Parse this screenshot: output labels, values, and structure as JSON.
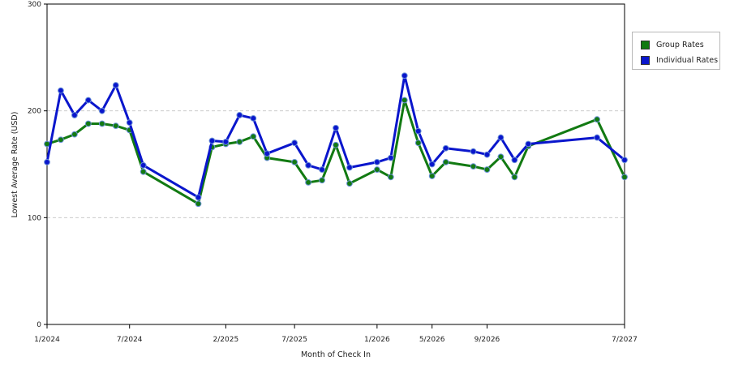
{
  "chart_data": {
    "type": "line",
    "xlabel": "Month of Check In",
    "ylabel": "Lowest Average Rate (USD)",
    "ylim": [
      0,
      300
    ],
    "yticks": [
      0,
      100,
      200,
      300
    ],
    "grid": "horizontal dashed",
    "legend_position": "right",
    "x_tick_labels": [
      "1/2024",
      "7/2024",
      "2/2025",
      "7/2025",
      "1/2026",
      "5/2026",
      "9/2026",
      "7/2027"
    ],
    "x_tick_months": [
      "2024-01",
      "2024-07",
      "2025-02",
      "2025-07",
      "2026-01",
      "2026-05",
      "2026-09",
      "2027-07"
    ],
    "months": [
      "2024-01",
      "2024-02",
      "2024-03",
      "2024-04",
      "2024-05",
      "2024-06",
      "2024-07",
      "2024-08",
      "2024-12",
      "2025-01",
      "2025-02",
      "2025-03",
      "2025-04",
      "2025-05",
      "2025-07",
      "2025-08",
      "2025-09",
      "2025-10",
      "2025-11",
      "2026-01",
      "2026-02",
      "2026-03",
      "2026-04",
      "2026-05",
      "2026-06",
      "2026-08",
      "2026-09",
      "2026-10",
      "2026-11",
      "2026-12",
      "2027-05",
      "2027-07"
    ],
    "series": [
      {
        "name": "Group Rates",
        "color": "#127a12",
        "values": [
          169,
          173,
          178,
          188,
          188,
          186,
          182,
          143,
          113,
          166,
          169,
          171,
          176,
          156,
          152,
          133,
          135,
          168,
          132,
          145,
          138,
          210,
          170,
          139,
          152,
          148,
          145,
          157,
          138,
          167,
          192,
          138
        ]
      },
      {
        "name": "Individual Rates",
        "color": "#0a16cc",
        "values": [
          152,
          219,
          196,
          210,
          200,
          224,
          189,
          149,
          119,
          172,
          171,
          196,
          193,
          160,
          170,
          149,
          145,
          184,
          147,
          152,
          156,
          233,
          181,
          150,
          165,
          162,
          159,
          175,
          154,
          169,
          175,
          154
        ]
      }
    ]
  }
}
